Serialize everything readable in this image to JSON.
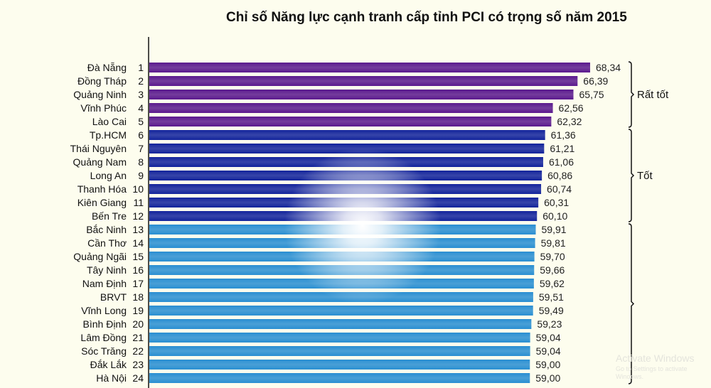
{
  "chart_data": {
    "type": "bar",
    "orientation": "horizontal",
    "title": "Chỉ số Năng lực cạnh tranh cấp tỉnh PCI có trọng số năm 2015",
    "categories": [
      "Đà Nẵng",
      "Đồng Tháp",
      "Quảng Ninh",
      "Vĩnh Phúc",
      "Lào Cai",
      "Tp.HCM",
      "Thái Nguyên",
      "Quảng Nam",
      "Long An",
      "Thanh Hóa",
      "Kiên Giang",
      "Bến Tre",
      "Bắc Ninh",
      "Cần Thơ",
      "Quảng Ngãi",
      "Tây Ninh",
      "Nam Định",
      "BRVT",
      "Vĩnh Long",
      "Bình Định",
      "Lâm Đồng",
      "Sóc Trăng",
      "Đắk Lắk",
      "Hà Nội"
    ],
    "ranks": [
      "1",
      "2",
      "3",
      "4",
      "5",
      "6",
      "7",
      "8",
      "9",
      "10",
      "11",
      "12",
      "13",
      "14",
      "15",
      "16",
      "17",
      "18",
      "19",
      "20",
      "21",
      "22",
      "23",
      "24"
    ],
    "values": [
      68.34,
      66.39,
      65.75,
      62.56,
      62.32,
      61.36,
      61.21,
      61.06,
      60.86,
      60.74,
      60.31,
      60.1,
      59.91,
      59.81,
      59.7,
      59.66,
      59.62,
      59.51,
      59.49,
      59.23,
      59.04,
      59.04,
      59.0,
      59.0
    ],
    "value_labels": [
      "68,34",
      "66,39",
      "65,75",
      "62,56",
      "62,32",
      "61,36",
      "61,21",
      "61,06",
      "60,86",
      "60,74",
      "60,31",
      "60,10",
      "59,91",
      "59,81",
      "59,70",
      "59,66",
      "59,62",
      "59,51",
      "59,49",
      "59,23",
      "59,04",
      "59,04",
      "59,00",
      "59,00"
    ],
    "groups": [
      {
        "label": "Rất tốt",
        "from": 0,
        "to": 4,
        "color": "#5b1a8e"
      },
      {
        "label": "Tốt",
        "from": 5,
        "to": 11,
        "color": "#13249c"
      },
      {
        "label": "",
        "from": 12,
        "to": 23,
        "color": "#2a8fd2"
      }
    ],
    "xlim": [
      0,
      68.34
    ],
    "grid": false,
    "legend": "none"
  },
  "watermark": {
    "line1": "Activate Windows",
    "line2": "Go to Settings to activate Windows."
  }
}
